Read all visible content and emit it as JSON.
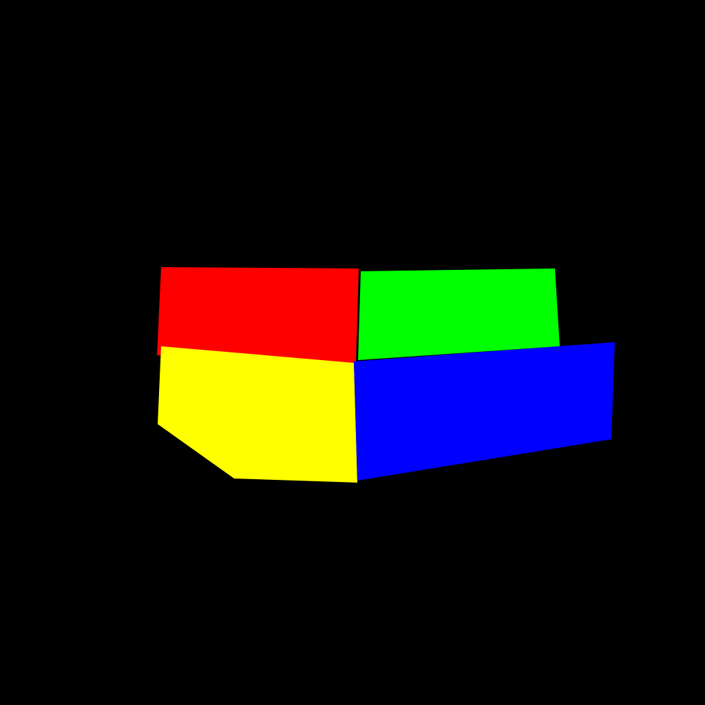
{
  "scene": {
    "background_color": "#000000",
    "shapes": [
      {
        "name": "red-panel",
        "color": "#ff0000"
      },
      {
        "name": "green-panel",
        "color": "#00ff00"
      },
      {
        "name": "yellow-panel",
        "color": "#ffff00"
      },
      {
        "name": "blue-panel",
        "color": "#0000ff"
      }
    ]
  }
}
